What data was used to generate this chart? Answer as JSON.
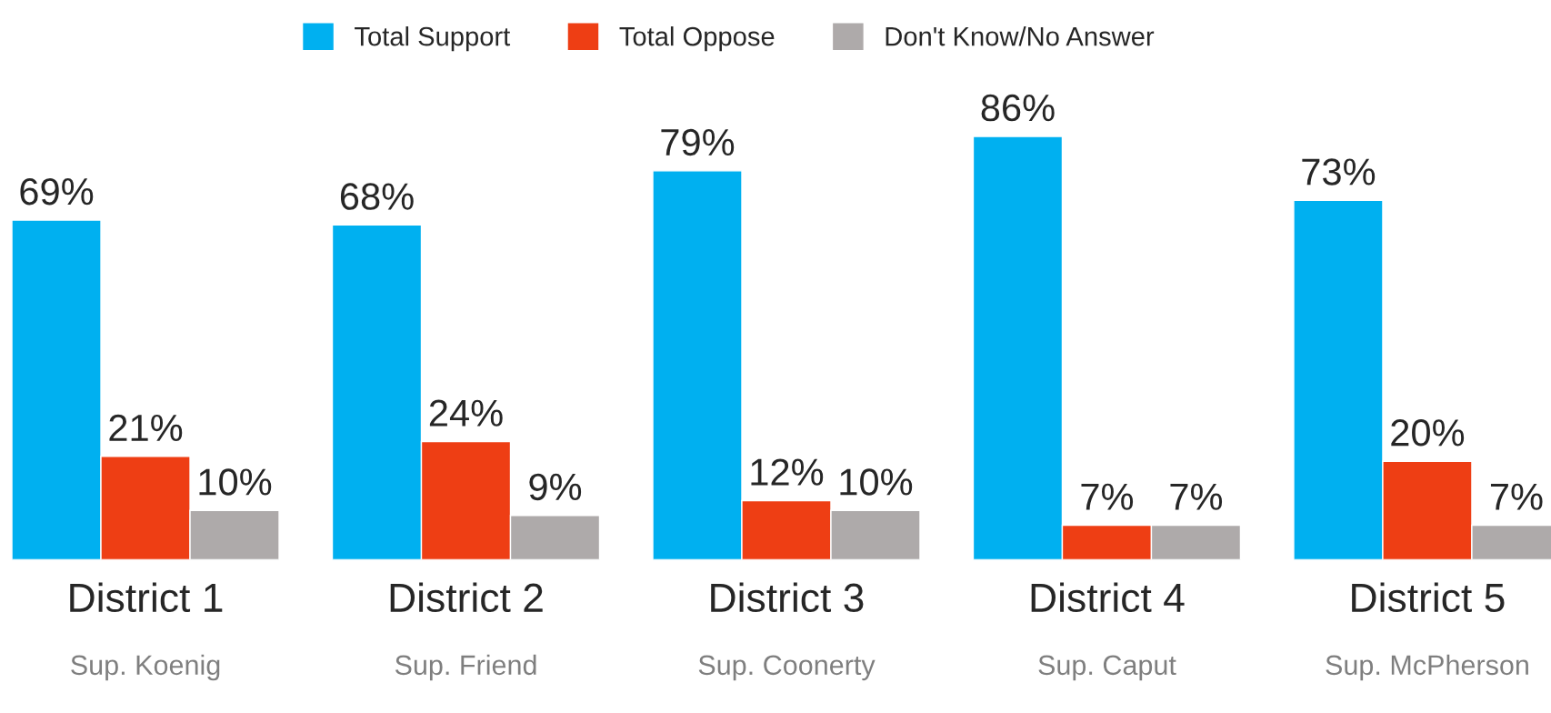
{
  "chart_data": {
    "type": "bar",
    "categories": [
      "District 1",
      "District 2",
      "District 3",
      "District 4",
      "District 5"
    ],
    "series": [
      {
        "name": "Total Support",
        "color": "#00b0f0",
        "values": [
          69,
          68,
          79,
          86,
          73
        ],
        "value_labels": [
          "69%",
          "68%",
          "79%",
          "86%",
          "73%"
        ]
      },
      {
        "name": "Total Oppose",
        "color": "#ee3e14",
        "values": [
          21,
          24,
          12,
          7,
          20
        ],
        "value_labels": [
          "21%",
          "24%",
          "12%",
          "7%",
          "20%"
        ]
      },
      {
        "name": "Don't Know/No Answer",
        "color": "#aeaaaa",
        "values": [
          10,
          9,
          10,
          7,
          7
        ],
        "value_labels": [
          "10%",
          "9%",
          "10%",
          "7%",
          "7%"
        ]
      }
    ],
    "annotations": [
      "Sup. Koenig",
      "Sup. Friend",
      "Sup. Coonerty",
      "Sup. Caput",
      "Sup. McPherson"
    ],
    "legend": "top",
    "grid": false
  }
}
